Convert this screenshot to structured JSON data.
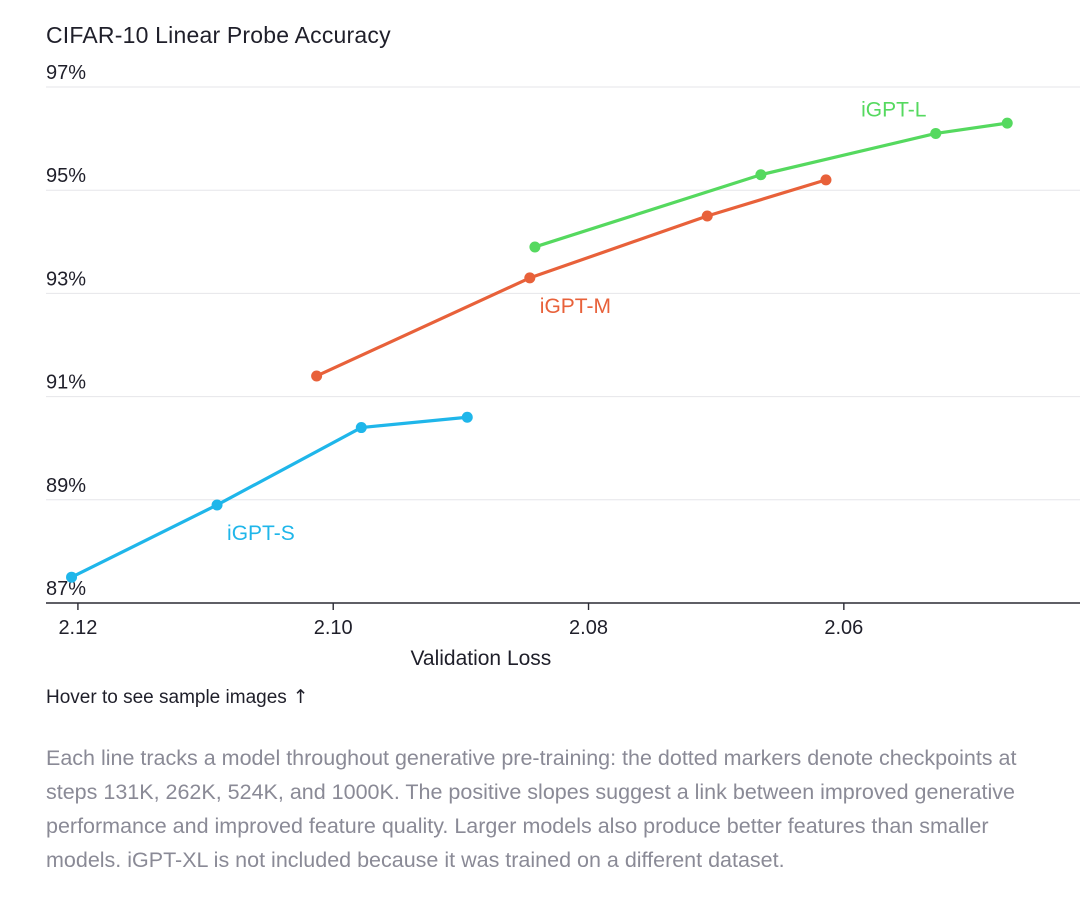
{
  "chart_data": {
    "type": "line",
    "title": "CIFAR-10 Linear Probe Accuracy",
    "xlabel": "Validation Loss",
    "ylabel": "",
    "x_reversed": true,
    "xlim": [
      2.1225,
      2.0415
    ],
    "ylim": [
      87,
      97
    ],
    "x_ticks": [
      2.12,
      2.1,
      2.08,
      2.06
    ],
    "x_tick_labels": [
      "2.12",
      "2.10",
      "2.08",
      "2.06"
    ],
    "y_ticks": [
      87,
      89,
      91,
      93,
      95,
      97
    ],
    "y_tick_labels": [
      "87%",
      "89%",
      "91%",
      "93%",
      "95%",
      "97%"
    ],
    "grid": "horizontal",
    "series": [
      {
        "name": "iGPT-S",
        "color": "#1fb6ea",
        "x": [
          2.1205,
          2.1091,
          2.0978,
          2.0895
        ],
        "y": [
          87.5,
          88.9,
          90.4,
          90.6
        ]
      },
      {
        "name": "iGPT-M",
        "color": "#e8613a",
        "x": [
          2.1013,
          2.0846,
          2.0707,
          2.0614
        ],
        "y": [
          91.4,
          93.3,
          94.5,
          95.2
        ]
      },
      {
        "name": "iGPT-L",
        "color": "#55d95f",
        "x": [
          2.0842,
          2.0665,
          2.0528,
          2.0472
        ],
        "y": [
          93.9,
          95.3,
          96.1,
          96.3
        ]
      }
    ]
  },
  "hover_note": {
    "text": "Hover to see sample images",
    "icon": "arrow-up-icon",
    "glyph": "↑"
  },
  "caption": "Each line tracks a model throughout generative pre-training: the dotted markers denote checkpoints at steps 131K, 262K, 524K, and 1000K. The positive slopes suggest a link between improved generative performance and improved feature quality. Larger models also produce better features than smaller models. iGPT-XL is not included because it was trained on a different dataset."
}
